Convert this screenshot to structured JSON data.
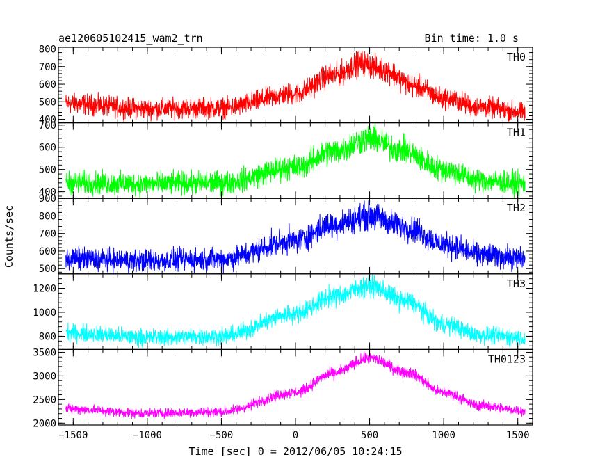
{
  "header": {
    "title": "ae120605102415_wam2_trn",
    "bin_time": "Bin time: 1.0 s"
  },
  "chart_data": {
    "type": "line",
    "xlabel": "Time [sec] 0 = 2012/06/05 10:24:15",
    "ylabel": "Counts/sec",
    "xlim": [
      -1600,
      1600
    ],
    "x_ticks": [
      -1500,
      -1000,
      -500,
      0,
      500,
      1000,
      1500
    ],
    "x_tick_labels": [
      "−1500",
      "−1000",
      "−500",
      "0",
      "500",
      "1000",
      "1500"
    ],
    "x_range": [
      -1550,
      1550
    ],
    "bin_time_s": 1.0,
    "panels": [
      {
        "name": "TH0",
        "color": "#ff0000",
        "ylim": [
          380,
          810
        ],
        "y_ticks": [
          400,
          500,
          600,
          700,
          800
        ],
        "envelope_x": [
          -1550,
          -1000,
          -500,
          0,
          250,
          450,
          600,
          800,
          1000,
          1250,
          1550
        ],
        "envelope_mean": [
          490,
          460,
          465,
          545,
          650,
          720,
          680,
          590,
          520,
          470,
          440
        ],
        "noise_halfwidth": 45
      },
      {
        "name": "TH1",
        "color": "#00ff00",
        "ylim": [
          370,
          710
        ],
        "y_ticks": [
          400,
          500,
          600,
          700
        ],
        "envelope_x": [
          -1550,
          -1000,
          -500,
          0,
          250,
          500,
          700,
          1000,
          1250,
          1550
        ],
        "envelope_mean": [
          440,
          435,
          440,
          510,
          580,
          640,
          590,
          500,
          450,
          435
        ],
        "noise_halfwidth": 40
      },
      {
        "name": "TH2",
        "color": "#0000ff",
        "ylim": [
          470,
          900
        ],
        "y_ticks": [
          500,
          600,
          700,
          800,
          900
        ],
        "envelope_x": [
          -1550,
          -1000,
          -500,
          0,
          250,
          500,
          750,
          1000,
          1250,
          1550
        ],
        "envelope_mean": [
          555,
          545,
          555,
          660,
          750,
          800,
          735,
          640,
          580,
          555
        ],
        "noise_halfwidth": 50
      },
      {
        "name": "TH3",
        "color": "#00ffff",
        "ylim": [
          690,
          1320
        ],
        "y_ticks": [
          800,
          1000,
          1200
        ],
        "envelope_x": [
          -1550,
          -1000,
          -500,
          0,
          250,
          500,
          750,
          1000,
          1250,
          1550
        ],
        "envelope_mean": [
          830,
          790,
          800,
          990,
          1130,
          1220,
          1090,
          900,
          810,
          790
        ],
        "noise_halfwidth": 55
      },
      {
        "name": "TH0123",
        "color": "#ff00ff",
        "ylim": [
          1960,
          3560
        ],
        "y_ticks": [
          2000,
          2500,
          3000,
          3500
        ],
        "envelope_x": [
          -1550,
          -1000,
          -500,
          0,
          250,
          500,
          750,
          1000,
          1250,
          1550
        ],
        "envelope_mean": [
          2300,
          2210,
          2240,
          2650,
          3050,
          3380,
          3080,
          2650,
          2370,
          2260
        ],
        "noise_halfwidth": 80
      }
    ]
  }
}
